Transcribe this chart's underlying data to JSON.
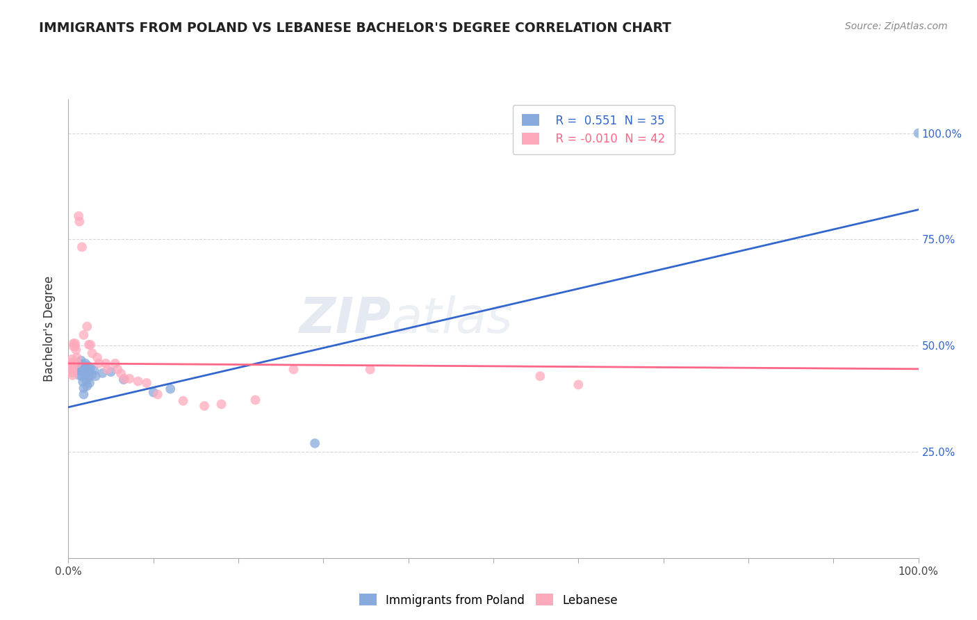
{
  "title": "IMMIGRANTS FROM POLAND VS LEBANESE BACHELOR'S DEGREE CORRELATION CHART",
  "source_text": "Source: ZipAtlas.com",
  "ylabel": "Bachelor's Degree",
  "xlim": [
    0.0,
    1.0
  ],
  "ylim": [
    0.0,
    1.0
  ],
  "xtick_positions": [
    0.0,
    0.1,
    0.2,
    0.3,
    0.4,
    0.5,
    0.6,
    0.7,
    0.8,
    0.9,
    1.0
  ],
  "ytick_labels": [
    "25.0%",
    "50.0%",
    "75.0%",
    "100.0%"
  ],
  "ytick_positions": [
    0.25,
    0.5,
    0.75,
    1.0
  ],
  "legend_r1": "R =  0.551  N = 35",
  "legend_r2": "R = -0.010  N = 42",
  "color_blue": "#88AADD",
  "color_pink": "#FFAABC",
  "line_blue": "#3366CC",
  "line_pink": "#FF6688",
  "watermark": "ZIPatlas",
  "poland_points": [
    [
      0.008,
      0.455
    ],
    [
      0.01,
      0.45
    ],
    [
      0.01,
      0.445
    ],
    [
      0.01,
      0.44
    ],
    [
      0.012,
      0.46
    ],
    [
      0.013,
      0.45
    ],
    [
      0.013,
      0.44
    ],
    [
      0.013,
      0.43
    ],
    [
      0.015,
      0.465
    ],
    [
      0.015,
      0.452
    ],
    [
      0.015,
      0.44
    ],
    [
      0.016,
      0.428
    ],
    [
      0.017,
      0.415
    ],
    [
      0.018,
      0.4
    ],
    [
      0.018,
      0.385
    ],
    [
      0.02,
      0.458
    ],
    [
      0.02,
      0.445
    ],
    [
      0.02,
      0.432
    ],
    [
      0.021,
      0.418
    ],
    [
      0.022,
      0.405
    ],
    [
      0.023,
      0.452
    ],
    [
      0.024,
      0.438
    ],
    [
      0.024,
      0.425
    ],
    [
      0.025,
      0.412
    ],
    [
      0.026,
      0.448
    ],
    [
      0.028,
      0.432
    ],
    [
      0.03,
      0.442
    ],
    [
      0.032,
      0.428
    ],
    [
      0.04,
      0.435
    ],
    [
      0.05,
      0.438
    ],
    [
      0.065,
      0.42
    ],
    [
      0.1,
      0.39
    ],
    [
      0.12,
      0.398
    ],
    [
      0.29,
      0.27
    ],
    [
      1.0,
      1.0
    ]
  ],
  "lebanese_points": [
    [
      0.004,
      0.468
    ],
    [
      0.004,
      0.46
    ],
    [
      0.005,
      0.455
    ],
    [
      0.005,
      0.448
    ],
    [
      0.005,
      0.442
    ],
    [
      0.005,
      0.436
    ],
    [
      0.005,
      0.43
    ],
    [
      0.006,
      0.505
    ],
    [
      0.006,
      0.498
    ],
    [
      0.008,
      0.505
    ],
    [
      0.008,
      0.498
    ],
    [
      0.009,
      0.49
    ],
    [
      0.01,
      0.472
    ],
    [
      0.01,
      0.458
    ],
    [
      0.012,
      0.805
    ],
    [
      0.013,
      0.792
    ],
    [
      0.016,
      0.732
    ],
    [
      0.018,
      0.525
    ],
    [
      0.022,
      0.545
    ],
    [
      0.024,
      0.502
    ],
    [
      0.026,
      0.502
    ],
    [
      0.028,
      0.482
    ],
    [
      0.034,
      0.472
    ],
    [
      0.036,
      0.458
    ],
    [
      0.044,
      0.458
    ],
    [
      0.046,
      0.444
    ],
    [
      0.055,
      0.458
    ],
    [
      0.058,
      0.444
    ],
    [
      0.062,
      0.434
    ],
    [
      0.066,
      0.422
    ],
    [
      0.072,
      0.422
    ],
    [
      0.082,
      0.416
    ],
    [
      0.092,
      0.412
    ],
    [
      0.105,
      0.385
    ],
    [
      0.135,
      0.37
    ],
    [
      0.16,
      0.358
    ],
    [
      0.18,
      0.362
    ],
    [
      0.22,
      0.372
    ],
    [
      0.265,
      0.444
    ],
    [
      0.355,
      0.444
    ],
    [
      0.555,
      0.428
    ],
    [
      0.6,
      0.408
    ]
  ],
  "poland_line": [
    [
      0.0,
      0.355
    ],
    [
      1.0,
      0.82
    ]
  ],
  "lebanese_line": [
    [
      0.0,
      0.458
    ],
    [
      1.0,
      0.445
    ]
  ]
}
